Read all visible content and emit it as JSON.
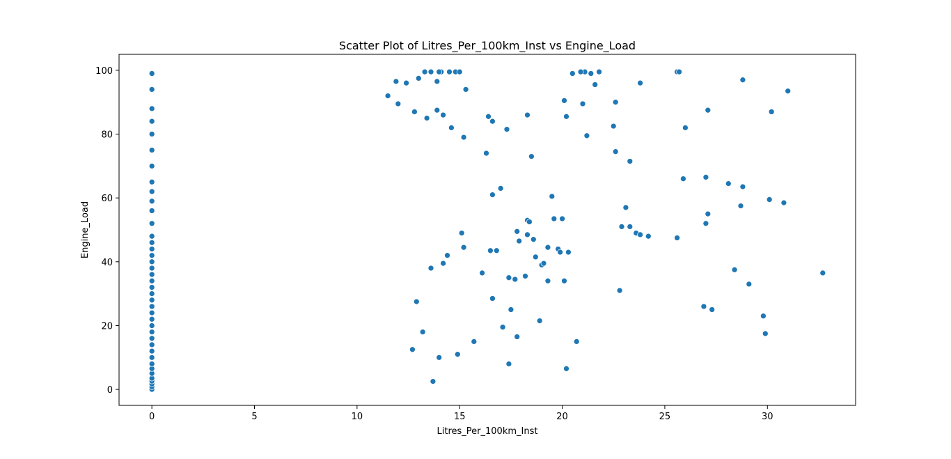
{
  "chart_data": {
    "type": "scatter",
    "title": "Scatter Plot of Litres_Per_100km_Inst vs Engine_Load",
    "xlabel": "Litres_Per_100km_Inst",
    "ylabel": "Engine_Load",
    "xlim": [
      -1.6,
      34.3
    ],
    "ylim": [
      -5,
      105
    ],
    "xticks": [
      0,
      5,
      10,
      15,
      20,
      25,
      30
    ],
    "yticks": [
      0,
      20,
      40,
      60,
      80,
      100
    ],
    "grid": false,
    "marker_color": "#1f77b4",
    "x": [
      0,
      0,
      0,
      0,
      0,
      0,
      0,
      0,
      0,
      0,
      0,
      0,
      0,
      0,
      0,
      0,
      0,
      0,
      0,
      0,
      0,
      0,
      0,
      0,
      0,
      0,
      0,
      0,
      0,
      0,
      0,
      0,
      0,
      0,
      0,
      0,
      0,
      0,
      0,
      0,
      12.7,
      14.0,
      14.9,
      15.7,
      16.1,
      17.4,
      17.8,
      18.2,
      18.9,
      19.3,
      19.8,
      20.2,
      20.7,
      20.1,
      18.3,
      17.4,
      16.5,
      15.2,
      14.4,
      13.7,
      12.9,
      13.2,
      13.6,
      14.2,
      15.1,
      16.6,
      17.1,
      17.5,
      17.7,
      17.9,
      18.4,
      18.7,
      19.0,
      19.3,
      19.6,
      19.9,
      20.3,
      20.1,
      18.5,
      16.8,
      16.3,
      16.6,
      17.0,
      17.8,
      18.3,
      18.6,
      19.1,
      19.5,
      20.0,
      21.0,
      21.6,
      22.6,
      23.3,
      22.5,
      21.2,
      17.3,
      16.4,
      16.6,
      18.3,
      20.2,
      22.6,
      21.8,
      21.1,
      21.4,
      20.9,
      20.5,
      22.8,
      22.9,
      23.1,
      23.3,
      23.6,
      23.8,
      24.2,
      25.6,
      25.6,
      25.7,
      27.0,
      27.0,
      27.1,
      28.1,
      28.4,
      28.7,
      28.8,
      29.1,
      29.8,
      29.9,
      30.1,
      30.2,
      30.8,
      31.0,
      32.7,
      27.1,
      26.9,
      27.3,
      26.0,
      23.8,
      25.9,
      28.8,
      13.9,
      14.1,
      14.5,
      14.8,
      15.0,
      15.3,
      14.0,
      13.6,
      13.3,
      13.0,
      12.4,
      11.9,
      11.5,
      12.0,
      12.8,
      13.4,
      13.9,
      14.2,
      14.6,
      15.2
    ],
    "y": [
      0,
      0.8,
      1.7,
      2.6,
      3.5,
      5,
      6.5,
      8,
      10,
      12,
      14,
      16,
      18,
      20,
      22,
      24,
      26,
      28,
      30,
      32,
      34,
      36,
      38,
      40,
      42,
      44,
      46,
      48,
      52,
      56,
      59,
      62,
      65,
      70,
      75,
      80,
      84,
      88,
      94,
      99,
      12.5,
      10,
      11,
      15,
      36.5,
      8,
      16.5,
      35.5,
      21.5,
      34,
      44,
      6.5,
      15,
      34,
      53,
      35,
      43.5,
      44.5,
      42,
      2.5,
      27.5,
      18,
      38,
      39.5,
      49,
      28.5,
      19.5,
      25,
      34.5,
      46.5,
      52.5,
      41.5,
      39,
      44.5,
      53.5,
      43,
      43,
      90.5,
      73,
      43.5,
      74,
      61,
      63,
      49.5,
      48.5,
      47,
      39.5,
      60.5,
      53.5,
      89.5,
      95.5,
      74.5,
      71.5,
      82.5,
      79.5,
      81.5,
      85.5,
      84,
      86,
      85.5,
      90,
      99.5,
      99.5,
      99,
      99.5,
      99,
      31,
      51,
      57,
      51,
      49,
      48.5,
      48,
      47.5,
      99.5,
      99.5,
      66.5,
      52,
      55,
      64.5,
      37.5,
      57.5,
      63.5,
      33,
      23,
      17.5,
      59.5,
      87,
      58.5,
      93.5,
      36.5,
      87.5,
      26,
      25,
      82,
      96,
      66,
      97,
      96.5,
      99.5,
      99.5,
      99.5,
      99.5,
      94,
      99.5,
      99.5,
      99.5,
      97.5,
      96,
      96.5,
      92,
      89.5,
      87,
      85,
      87.5,
      86,
      82,
      79
    ]
  }
}
